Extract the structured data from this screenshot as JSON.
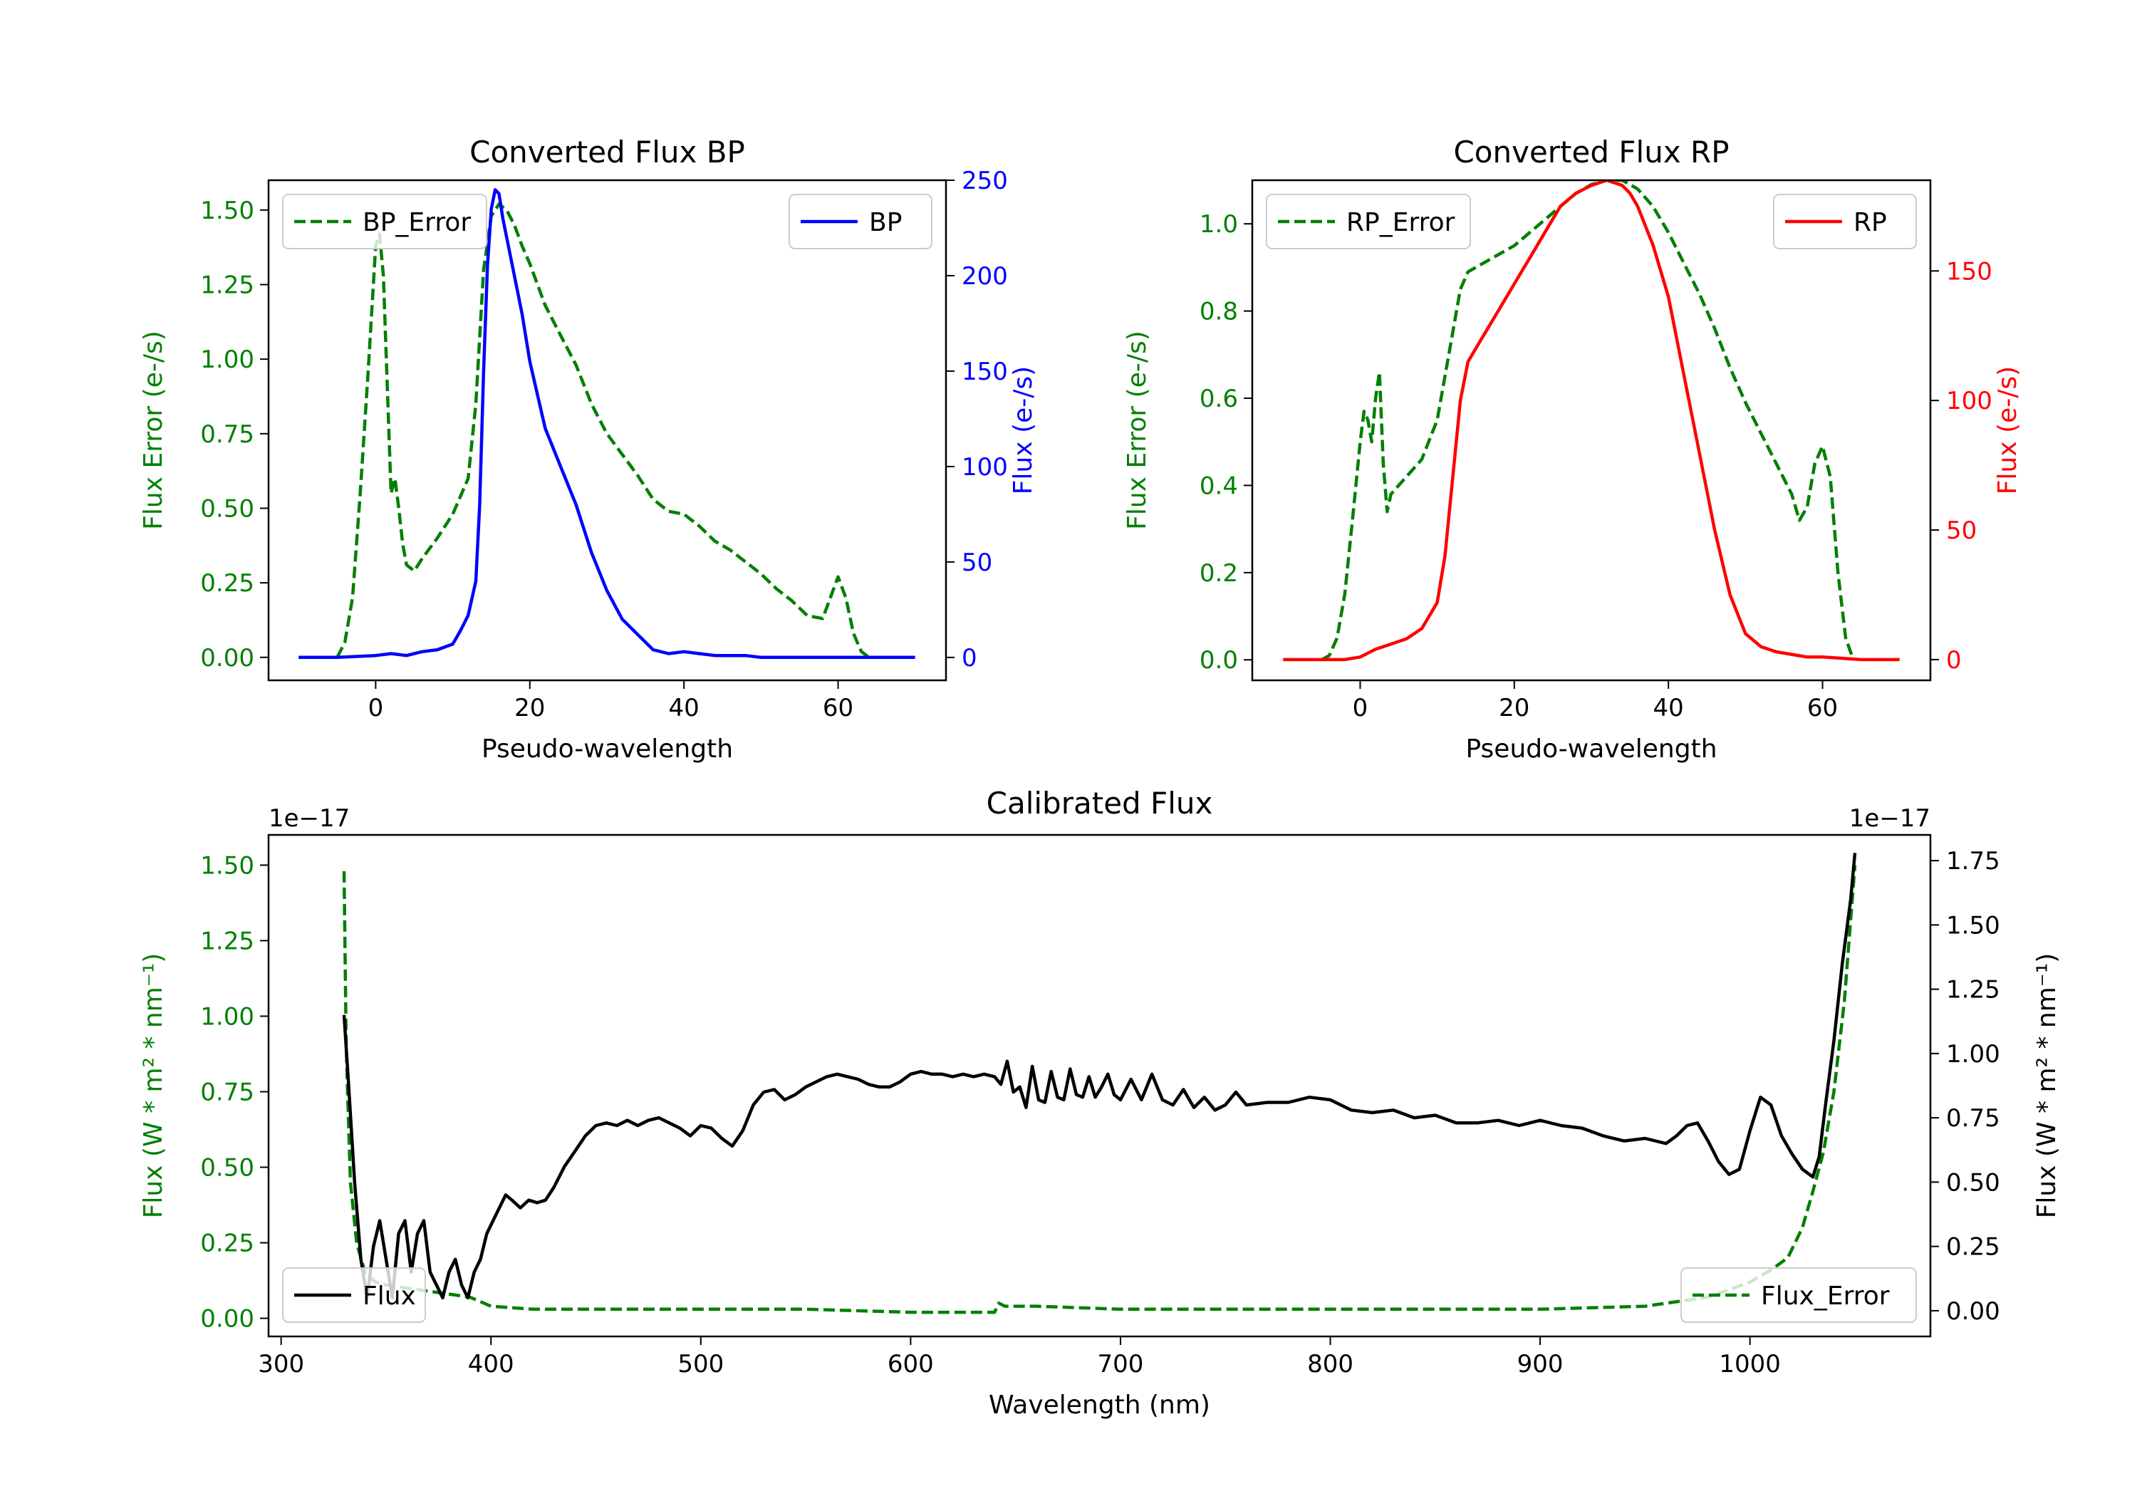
{
  "chart_data": [
    {
      "type": "line",
      "title": "Converted Flux BP",
      "xlabel": "Pseudo-wavelength",
      "xlim": [
        -13.9,
        74
      ],
      "xticks": [
        0,
        20,
        40,
        60
      ],
      "left_axis": {
        "label": "Flux Error (e-/s)",
        "color": "#008000",
        "ylim": [
          -0.077,
          1.6
        ],
        "ticks": [
          "0.00",
          "0.25",
          "0.50",
          "0.75",
          "1.00",
          "1.25",
          "1.50"
        ]
      },
      "right_axis": {
        "label": "Flux (e-/s)",
        "color": "#0000ff",
        "ylim": [
          -12,
          250
        ],
        "ticks": [
          "0",
          "50",
          "100",
          "150",
          "200",
          "250"
        ]
      },
      "legend_left": "BP_Error",
      "legend_right": "BP",
      "series": [
        {
          "name": "BP_Error",
          "axis": "left",
          "style": "dashed",
          "color": "#008000",
          "x": [
            -5,
            -4,
            -3,
            -2,
            -1,
            0,
            0.5,
            1,
            2,
            2.5,
            3,
            3.5,
            4,
            5,
            6,
            8,
            10,
            12,
            13,
            14,
            15,
            16,
            17,
            18,
            19,
            20,
            21,
            22,
            24,
            26,
            28,
            30,
            32,
            34,
            36,
            38,
            40,
            42,
            44,
            46,
            48,
            50,
            52,
            54,
            56,
            58,
            59,
            60,
            61,
            62,
            63,
            64
          ],
          "y": [
            0.0,
            0.05,
            0.2,
            0.55,
            0.95,
            1.38,
            1.42,
            1.28,
            0.55,
            0.6,
            0.5,
            0.38,
            0.31,
            0.29,
            0.33,
            0.4,
            0.48,
            0.6,
            0.85,
            1.3,
            1.48,
            1.52,
            1.5,
            1.45,
            1.38,
            1.32,
            1.25,
            1.18,
            1.08,
            0.98,
            0.85,
            0.75,
            0.68,
            0.61,
            0.53,
            0.49,
            0.48,
            0.44,
            0.39,
            0.36,
            0.32,
            0.28,
            0.23,
            0.19,
            0.14,
            0.13,
            0.2,
            0.27,
            0.2,
            0.08,
            0.02,
            0.0
          ]
        },
        {
          "name": "BP",
          "axis": "right",
          "style": "solid",
          "color": "#0000ff",
          "x": [
            -10,
            -5,
            0,
            2,
            4,
            6,
            8,
            10,
            11,
            12,
            13,
            13.5,
            14,
            14.5,
            15,
            15.5,
            16,
            16.5,
            17,
            18,
            19,
            20,
            22,
            24,
            26,
            28,
            30,
            32,
            34,
            36,
            38,
            40,
            42,
            44,
            46,
            48,
            50,
            55,
            60,
            65,
            70
          ],
          "y": [
            0,
            0,
            1,
            2,
            1,
            3,
            4,
            7,
            14,
            22,
            40,
            80,
            150,
            205,
            235,
            245,
            243,
            230,
            220,
            200,
            180,
            155,
            120,
            100,
            80,
            55,
            35,
            20,
            12,
            4,
            2,
            3,
            2,
            1,
            1,
            1,
            0,
            0,
            0,
            0,
            0
          ]
        }
      ]
    },
    {
      "type": "line",
      "title": "Converted Flux RP",
      "xlabel": "Pseudo-wavelength",
      "xlim": [
        -14,
        74
      ],
      "xticks": [
        0,
        20,
        40,
        60
      ],
      "left_axis": {
        "label": "Flux Error (e-/s)",
        "color": "#008000",
        "ylim": [
          -0.047,
          1.1
        ],
        "ticks": [
          "0.0",
          "0.2",
          "0.4",
          "0.6",
          "0.8",
          "1.0"
        ]
      },
      "right_axis": {
        "label": "Flux (e-/s)",
        "color": "#ff0000",
        "ylim": [
          -8,
          185
        ],
        "ticks": [
          "0",
          "50",
          "100",
          "150"
        ]
      },
      "legend_left": "RP_Error",
      "legend_right": "RP",
      "series": [
        {
          "name": "RP_Error",
          "axis": "left",
          "style": "dashed",
          "color": "#008000",
          "x": [
            -5,
            -4,
            -3,
            -2,
            -1,
            0,
            0.5,
            1,
            1.5,
            2,
            2.5,
            3,
            3.5,
            4,
            5,
            6,
            8,
            10,
            12,
            13,
            14,
            15,
            16,
            18,
            20,
            22,
            24,
            26,
            28,
            30,
            32,
            34,
            36,
            38,
            40,
            42,
            44,
            46,
            48,
            50,
            52,
            54,
            56,
            57,
            58,
            59,
            60,
            61,
            62,
            63,
            64
          ],
          "y": [
            0.0,
            0.01,
            0.05,
            0.15,
            0.32,
            0.5,
            0.57,
            0.55,
            0.5,
            0.6,
            0.66,
            0.45,
            0.34,
            0.38,
            0.4,
            0.42,
            0.46,
            0.55,
            0.75,
            0.85,
            0.89,
            0.9,
            0.91,
            0.93,
            0.95,
            0.98,
            1.01,
            1.04,
            1.07,
            1.09,
            1.1,
            1.1,
            1.08,
            1.04,
            0.98,
            0.91,
            0.84,
            0.76,
            0.67,
            0.59,
            0.52,
            0.45,
            0.38,
            0.32,
            0.35,
            0.45,
            0.49,
            0.42,
            0.2,
            0.05,
            0.0
          ]
        },
        {
          "name": "RP",
          "axis": "right",
          "style": "solid",
          "color": "#ff0000",
          "x": [
            -10,
            -5,
            -2,
            0,
            2,
            4,
            6,
            8,
            10,
            11,
            12,
            13,
            14,
            15,
            16,
            18,
            20,
            22,
            24,
            26,
            28,
            30,
            32,
            33,
            34,
            35,
            36,
            38,
            40,
            42,
            44,
            46,
            48,
            50,
            52,
            54,
            56,
            58,
            60,
            65,
            70
          ],
          "y": [
            0,
            0,
            0,
            1,
            4,
            6,
            8,
            12,
            22,
            40,
            70,
            100,
            115,
            120,
            125,
            135,
            145,
            155,
            165,
            175,
            180,
            183,
            185,
            184,
            183,
            180,
            175,
            160,
            140,
            110,
            80,
            50,
            25,
            10,
            5,
            3,
            2,
            1,
            1,
            0,
            0
          ]
        }
      ]
    },
    {
      "type": "line",
      "title": "Calibrated Flux",
      "xlabel": "Wavelength (nm)",
      "xlim": [
        294,
        1086
      ],
      "xticks": [
        300,
        400,
        500,
        600,
        700,
        800,
        900,
        1000
      ],
      "left_axis": {
        "label": "Flux (W * m² * nm⁻¹)",
        "color": "#008000",
        "ylim": [
          -0.06,
          1.6
        ],
        "ticks": [
          "0.00",
          "0.25",
          "0.50",
          "0.75",
          "1.00",
          "1.25",
          "1.50"
        ],
        "offset": "1e−17"
      },
      "right_axis": {
        "label": "Flux (W * m² * nm⁻¹)",
        "color": "#000000",
        "ylim": [
          -0.1,
          1.85
        ],
        "ticks": [
          "0.00",
          "0.25",
          "0.50",
          "0.75",
          "1.00",
          "1.25",
          "1.50",
          "1.75"
        ],
        "offset": "1e−17"
      },
      "legend_left": "Flux",
      "legend_right": "Flux_Error",
      "series": [
        {
          "name": "Flux_Error",
          "axis": "left",
          "style": "dashed",
          "color": "#008000",
          "x": [
            330,
            331,
            333,
            336,
            340,
            345,
            350,
            360,
            370,
            380,
            390,
            400,
            420,
            450,
            500,
            550,
            600,
            640,
            642,
            645,
            660,
            700,
            750,
            800,
            850,
            900,
            950,
            980,
            1000,
            1010,
            1018,
            1025,
            1030,
            1035,
            1040,
            1045,
            1050
          ],
          "y": [
            1.48,
            0.9,
            0.45,
            0.25,
            0.15,
            0.12,
            0.11,
            0.1,
            0.09,
            0.08,
            0.07,
            0.04,
            0.03,
            0.03,
            0.03,
            0.03,
            0.02,
            0.02,
            0.05,
            0.04,
            0.04,
            0.03,
            0.03,
            0.03,
            0.03,
            0.03,
            0.04,
            0.07,
            0.12,
            0.16,
            0.2,
            0.3,
            0.42,
            0.55,
            0.75,
            1.05,
            1.5
          ]
        },
        {
          "name": "Flux",
          "axis": "right",
          "style": "solid",
          "color": "#000000",
          "x": [
            330,
            332,
            335,
            338,
            341,
            344,
            347,
            350,
            353,
            356,
            359,
            362,
            365,
            368,
            371,
            374,
            377,
            380,
            383,
            386,
            389,
            392,
            395,
            398,
            401,
            404,
            407,
            410,
            414,
            418,
            422,
            426,
            430,
            435,
            440,
            445,
            450,
            455,
            460,
            465,
            470,
            475,
            480,
            485,
            490,
            495,
            500,
            505,
            510,
            515,
            520,
            525,
            530,
            535,
            540,
            545,
            550,
            555,
            560,
            565,
            570,
            575,
            580,
            585,
            590,
            595,
            600,
            605,
            610,
            615,
            620,
            625,
            630,
            635,
            640,
            643,
            646,
            649,
            652,
            655,
            658,
            661,
            664,
            667,
            670,
            673,
            676,
            679,
            682,
            685,
            688,
            691,
            694,
            697,
            700,
            705,
            710,
            715,
            720,
            725,
            730,
            735,
            740,
            745,
            750,
            755,
            760,
            770,
            780,
            790,
            800,
            810,
            820,
            830,
            840,
            850,
            860,
            870,
            880,
            890,
            900,
            910,
            920,
            930,
            940,
            950,
            960,
            965,
            970,
            975,
            980,
            985,
            990,
            995,
            1000,
            1005,
            1010,
            1015,
            1020,
            1025,
            1030,
            1033,
            1036,
            1040,
            1044,
            1048,
            1050
          ],
          "y": [
            1.15,
            0.9,
            0.5,
            0.2,
            0.05,
            0.25,
            0.35,
            0.2,
            0.05,
            0.3,
            0.35,
            0.15,
            0.3,
            0.35,
            0.15,
            0.1,
            0.05,
            0.15,
            0.2,
            0.1,
            0.05,
            0.15,
            0.2,
            0.3,
            0.35,
            0.4,
            0.45,
            0.43,
            0.4,
            0.43,
            0.42,
            0.43,
            0.48,
            0.56,
            0.62,
            0.68,
            0.72,
            0.73,
            0.72,
            0.74,
            0.72,
            0.74,
            0.75,
            0.73,
            0.71,
            0.68,
            0.72,
            0.71,
            0.67,
            0.64,
            0.7,
            0.8,
            0.85,
            0.86,
            0.82,
            0.84,
            0.87,
            0.89,
            0.91,
            0.92,
            0.91,
            0.9,
            0.88,
            0.87,
            0.87,
            0.89,
            0.92,
            0.93,
            0.92,
            0.92,
            0.91,
            0.92,
            0.91,
            0.92,
            0.91,
            0.88,
            0.97,
            0.85,
            0.87,
            0.79,
            0.95,
            0.82,
            0.81,
            0.93,
            0.83,
            0.82,
            0.94,
            0.84,
            0.83,
            0.91,
            0.83,
            0.87,
            0.92,
            0.84,
            0.82,
            0.9,
            0.82,
            0.92,
            0.82,
            0.8,
            0.86,
            0.79,
            0.83,
            0.78,
            0.8,
            0.85,
            0.8,
            0.81,
            0.81,
            0.83,
            0.82,
            0.78,
            0.77,
            0.78,
            0.75,
            0.76,
            0.73,
            0.73,
            0.74,
            0.72,
            0.74,
            0.72,
            0.71,
            0.68,
            0.66,
            0.67,
            0.65,
            0.68,
            0.72,
            0.73,
            0.66,
            0.58,
            0.53,
            0.55,
            0.7,
            0.83,
            0.8,
            0.68,
            0.61,
            0.55,
            0.52,
            0.6,
            0.8,
            1.05,
            1.35,
            1.6,
            1.78
          ]
        }
      ]
    }
  ]
}
